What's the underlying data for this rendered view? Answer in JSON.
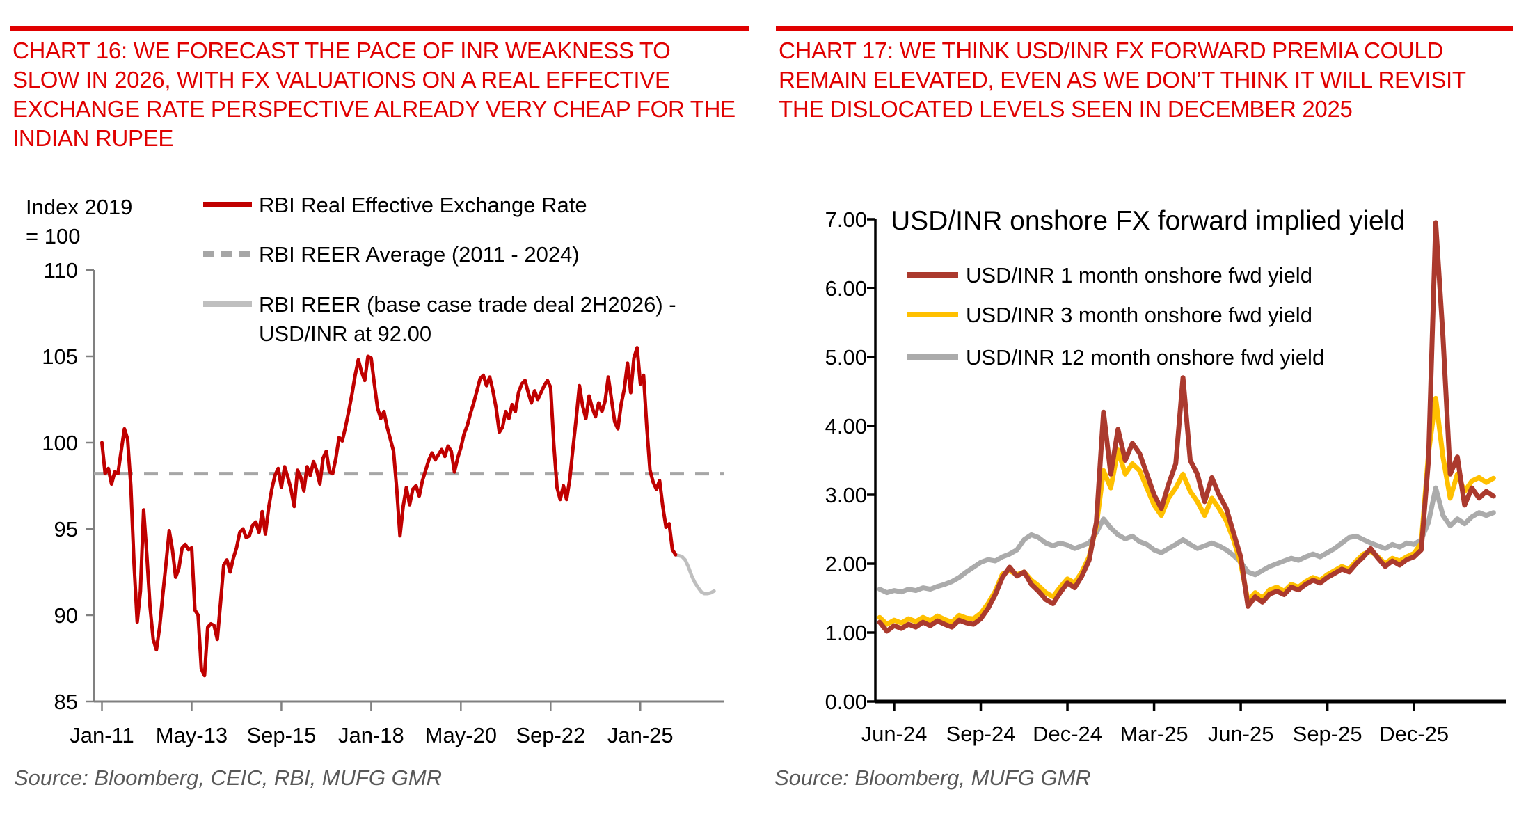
{
  "page": {
    "background": "#FFFFFF",
    "accent_red": "#E00000",
    "axis_gray": "#808080",
    "source_gray": "#595959"
  },
  "left_panel": {
    "heading": "CHART 16: WE FORECAST THE PACE OF INR WEAKNESS TO SLOW IN 2026, WITH FX VALUATIONS ON A REAL EFFECTIVE EXCHANGE RATE PERSPECTIVE ALREADY VERY CHEAP FOR THE INDIAN RUPEE",
    "source": "Source: Bloomberg, CEIC, RBI, MUFG GMR"
  },
  "right_panel": {
    "heading": "CHART 17: WE THINK USD/INR FX FORWARD PREMIA COULD REMAIN ELEVATED, EVEN AS WE DON’T THINK IT WILL REVISIT THE DISLOCATED LEVELS SEEN IN DECEMBER 2025",
    "source": "Source: Bloomberg, MUFG GMR"
  },
  "chart_data": [
    {
      "id": "reer-chart",
      "type": "line",
      "title": "",
      "y_axis_title_lines": [
        "Index 2019",
        "= 100"
      ],
      "ylabel": "Index 2019 = 100",
      "ylim": [
        85,
        110
      ],
      "yticks": [
        85,
        90,
        95,
        100,
        105,
        110
      ],
      "ytick_decimals": 0,
      "x_unit": "months since Jan-2011",
      "xlim": [
        -2.5,
        194
      ],
      "xticks": [
        {
          "x": 0,
          "label": "Jan-11"
        },
        {
          "x": 28,
          "label": "May-13"
        },
        {
          "x": 56,
          "label": "Sep-15"
        },
        {
          "x": 84,
          "label": "Jan-18"
        },
        {
          "x": 112,
          "label": "May-20"
        },
        {
          "x": 140,
          "label": "Sep-22"
        },
        {
          "x": 168,
          "label": "Jan-25"
        }
      ],
      "grid": false,
      "legend_position": "inside-top-left",
      "series": [
        {
          "name": "RBI Real Effective Exchange Rate",
          "legend_lines": [
            "RBI Real Effective Exchange Rate"
          ],
          "color": "#C00000",
          "dash": "solid",
          "kind": "data",
          "x_start": 0,
          "x_step": 1,
          "values": [
            100.0,
            98.2,
            98.5,
            97.6,
            98.3,
            98.2,
            99.5,
            100.8,
            100.2,
            97.5,
            93.0,
            89.6,
            91.4,
            96.1,
            93.5,
            90.5,
            88.6,
            88.0,
            89.3,
            91.2,
            93.0,
            94.9,
            93.8,
            92.2,
            92.7,
            93.9,
            94.1,
            93.8,
            93.9,
            90.3,
            90.0,
            86.9,
            86.5,
            89.3,
            89.5,
            89.4,
            88.6,
            90.7,
            92.9,
            93.2,
            92.5,
            93.3,
            93.9,
            94.8,
            95.0,
            94.5,
            94.6,
            95.2,
            95.4,
            94.8,
            96.0,
            94.7,
            96.2,
            97.3,
            98.1,
            98.5,
            97.4,
            98.6,
            98.0,
            97.3,
            96.3,
            98.4,
            98.0,
            97.2,
            98.6,
            98.1,
            98.9,
            98.4,
            97.6,
            99.1,
            99.5,
            98.3,
            98.2,
            99.1,
            100.3,
            100.1,
            100.9,
            101.8,
            102.8,
            103.9,
            104.8,
            104.1,
            103.6,
            105.0,
            104.9,
            103.4,
            102.0,
            101.4,
            101.8,
            100.9,
            100.2,
            99.5,
            97.3,
            94.6,
            96.3,
            97.4,
            96.4,
            97.3,
            97.5,
            96.9,
            97.8,
            98.4,
            99.0,
            99.4,
            99.0,
            99.3,
            99.6,
            99.2,
            99.8,
            99.5,
            98.3,
            99.1,
            99.7,
            100.5,
            101.0,
            101.7,
            102.3,
            103.0,
            103.7,
            103.9,
            103.3,
            103.8,
            103.0,
            102.0,
            100.6,
            100.9,
            101.8,
            101.4,
            102.2,
            101.8,
            102.9,
            103.4,
            103.6,
            102.9,
            102.3,
            103.0,
            102.5,
            102.9,
            103.3,
            103.6,
            103.2,
            99.9,
            97.4,
            96.7,
            97.5,
            96.7,
            97.9,
            99.7,
            101.4,
            103.3,
            102.1,
            101.4,
            102.7,
            102.0,
            101.5,
            102.3,
            101.8,
            102.4,
            103.8,
            102.5,
            101.2,
            100.8,
            102.2,
            103.1,
            104.6,
            102.9,
            104.9,
            105.5,
            103.4,
            103.9,
            100.9,
            98.4,
            97.7,
            97.3,
            97.8,
            96.3,
            95.1,
            95.3,
            93.8,
            93.5
          ]
        },
        {
          "name": "RBI REER Average (2011 - 2024)",
          "legend_lines": [
            "RBI REER Average (2011 - 2024)"
          ],
          "color": "#A6A6A6",
          "dash": "dashed",
          "kind": "hline",
          "value": 98.2
        },
        {
          "name": "RBI REER (base case trade deal 2H2026) - USD/INR at 92.00",
          "legend_lines": [
            "RBI REER (base case trade deal 2H2026) -",
            "USD/INR at 92.00"
          ],
          "color": "#BFBFBF",
          "dash": "solid",
          "kind": "data",
          "x_start": 179,
          "x_step": 1,
          "values": [
            93.5,
            93.45,
            93.4,
            93.2,
            92.8,
            92.3,
            91.9,
            91.6,
            91.35,
            91.25,
            91.25,
            91.3,
            91.4
          ]
        }
      ]
    },
    {
      "id": "fwd-yield-chart",
      "type": "line",
      "title": "USD/INR onshore FX forward implied yield",
      "ylim": [
        0,
        7
      ],
      "yticks": [
        0,
        1,
        2,
        3,
        4,
        5,
        6,
        7
      ],
      "ytick_decimals": 2,
      "x_unit": "months since Jun-2024",
      "xlim": [
        -0.65,
        21.2
      ],
      "xticks": [
        {
          "x": 0,
          "label": "Jun-24"
        },
        {
          "x": 3,
          "label": "Sep-24"
        },
        {
          "x": 6,
          "label": "Dec-24"
        },
        {
          "x": 9,
          "label": "Mar-25"
        },
        {
          "x": 12,
          "label": "Jun-25"
        },
        {
          "x": 15,
          "label": "Sep-25"
        },
        {
          "x": 18,
          "label": "Dec-25"
        }
      ],
      "grid": false,
      "legend_position": "inside-top-left",
      "series": [
        {
          "name": "USD/INR 1 month onshore fwd yield",
          "legend_lines": [
            "USD/INR 1 month onshore fwd yield"
          ],
          "color": "#AB3A2E",
          "dash": "solid",
          "kind": "data",
          "x_start": -0.5,
          "x_step": 0.25,
          "values": [
            1.15,
            1.02,
            1.1,
            1.06,
            1.12,
            1.08,
            1.15,
            1.1,
            1.17,
            1.12,
            1.08,
            1.18,
            1.14,
            1.12,
            1.2,
            1.35,
            1.55,
            1.8,
            1.95,
            1.82,
            1.88,
            1.7,
            1.6,
            1.48,
            1.42,
            1.58,
            1.72,
            1.65,
            1.82,
            2.05,
            2.6,
            4.2,
            3.3,
            3.95,
            3.5,
            3.75,
            3.6,
            3.3,
            3.0,
            2.8,
            3.15,
            3.45,
            4.7,
            3.5,
            3.3,
            2.9,
            3.25,
            3.0,
            2.8,
            2.45,
            2.1,
            1.38,
            1.52,
            1.44,
            1.56,
            1.6,
            1.55,
            1.66,
            1.62,
            1.7,
            1.76,
            1.72,
            1.8,
            1.86,
            1.92,
            1.88,
            2.0,
            2.1,
            2.22,
            2.08,
            1.96,
            2.04,
            1.98,
            2.06,
            2.1,
            2.2,
            3.5,
            6.95,
            5.3,
            3.3,
            3.55,
            2.85,
            3.1,
            2.95,
            3.05,
            2.98
          ]
        },
        {
          "name": "USD/INR 3 month onshore fwd yield",
          "legend_lines": [
            "USD/INR 3 month onshore fwd yield"
          ],
          "color": "#FFC000",
          "dash": "solid",
          "kind": "data",
          "x_start": -0.5,
          "x_step": 0.25,
          "values": [
            1.22,
            1.12,
            1.18,
            1.14,
            1.2,
            1.16,
            1.22,
            1.17,
            1.24,
            1.19,
            1.15,
            1.25,
            1.21,
            1.2,
            1.28,
            1.42,
            1.6,
            1.85,
            1.9,
            1.84,
            1.88,
            1.76,
            1.68,
            1.58,
            1.52,
            1.66,
            1.78,
            1.72,
            1.88,
            2.1,
            2.55,
            3.35,
            3.1,
            3.65,
            3.3,
            3.45,
            3.35,
            3.1,
            2.85,
            2.7,
            2.95,
            3.1,
            3.3,
            3.05,
            2.9,
            2.7,
            2.95,
            2.8,
            2.62,
            2.35,
            2.0,
            1.46,
            1.58,
            1.5,
            1.62,
            1.66,
            1.6,
            1.7,
            1.66,
            1.74,
            1.8,
            1.76,
            1.84,
            1.9,
            1.96,
            1.92,
            2.04,
            2.14,
            2.18,
            2.1,
            2.0,
            2.08,
            2.04,
            2.1,
            2.15,
            2.3,
            3.6,
            4.4,
            3.55,
            2.95,
            3.3,
            3.05,
            3.2,
            3.25,
            3.18,
            3.24
          ]
        },
        {
          "name": "USD/INR 12 month onshore fwd yield",
          "legend_lines": [
            "USD/INR 12 month onshore fwd yield"
          ],
          "color": "#ABABAB",
          "dash": "solid",
          "kind": "data",
          "x_start": -0.5,
          "x_step": 0.25,
          "values": [
            1.63,
            1.58,
            1.61,
            1.59,
            1.63,
            1.61,
            1.65,
            1.63,
            1.67,
            1.7,
            1.74,
            1.8,
            1.88,
            1.95,
            2.02,
            2.06,
            2.04,
            2.1,
            2.14,
            2.2,
            2.35,
            2.42,
            2.38,
            2.3,
            2.26,
            2.3,
            2.27,
            2.22,
            2.26,
            2.3,
            2.45,
            2.65,
            2.52,
            2.42,
            2.36,
            2.4,
            2.32,
            2.28,
            2.2,
            2.16,
            2.22,
            2.28,
            2.35,
            2.28,
            2.22,
            2.26,
            2.3,
            2.26,
            2.2,
            2.12,
            2.02,
            1.88,
            1.84,
            1.9,
            1.96,
            2.0,
            2.04,
            2.08,
            2.05,
            2.1,
            2.14,
            2.1,
            2.16,
            2.22,
            2.3,
            2.38,
            2.4,
            2.35,
            2.3,
            2.26,
            2.22,
            2.28,
            2.24,
            2.3,
            2.28,
            2.35,
            2.6,
            3.1,
            2.7,
            2.55,
            2.65,
            2.58,
            2.68,
            2.74,
            2.7,
            2.74
          ]
        }
      ]
    }
  ]
}
